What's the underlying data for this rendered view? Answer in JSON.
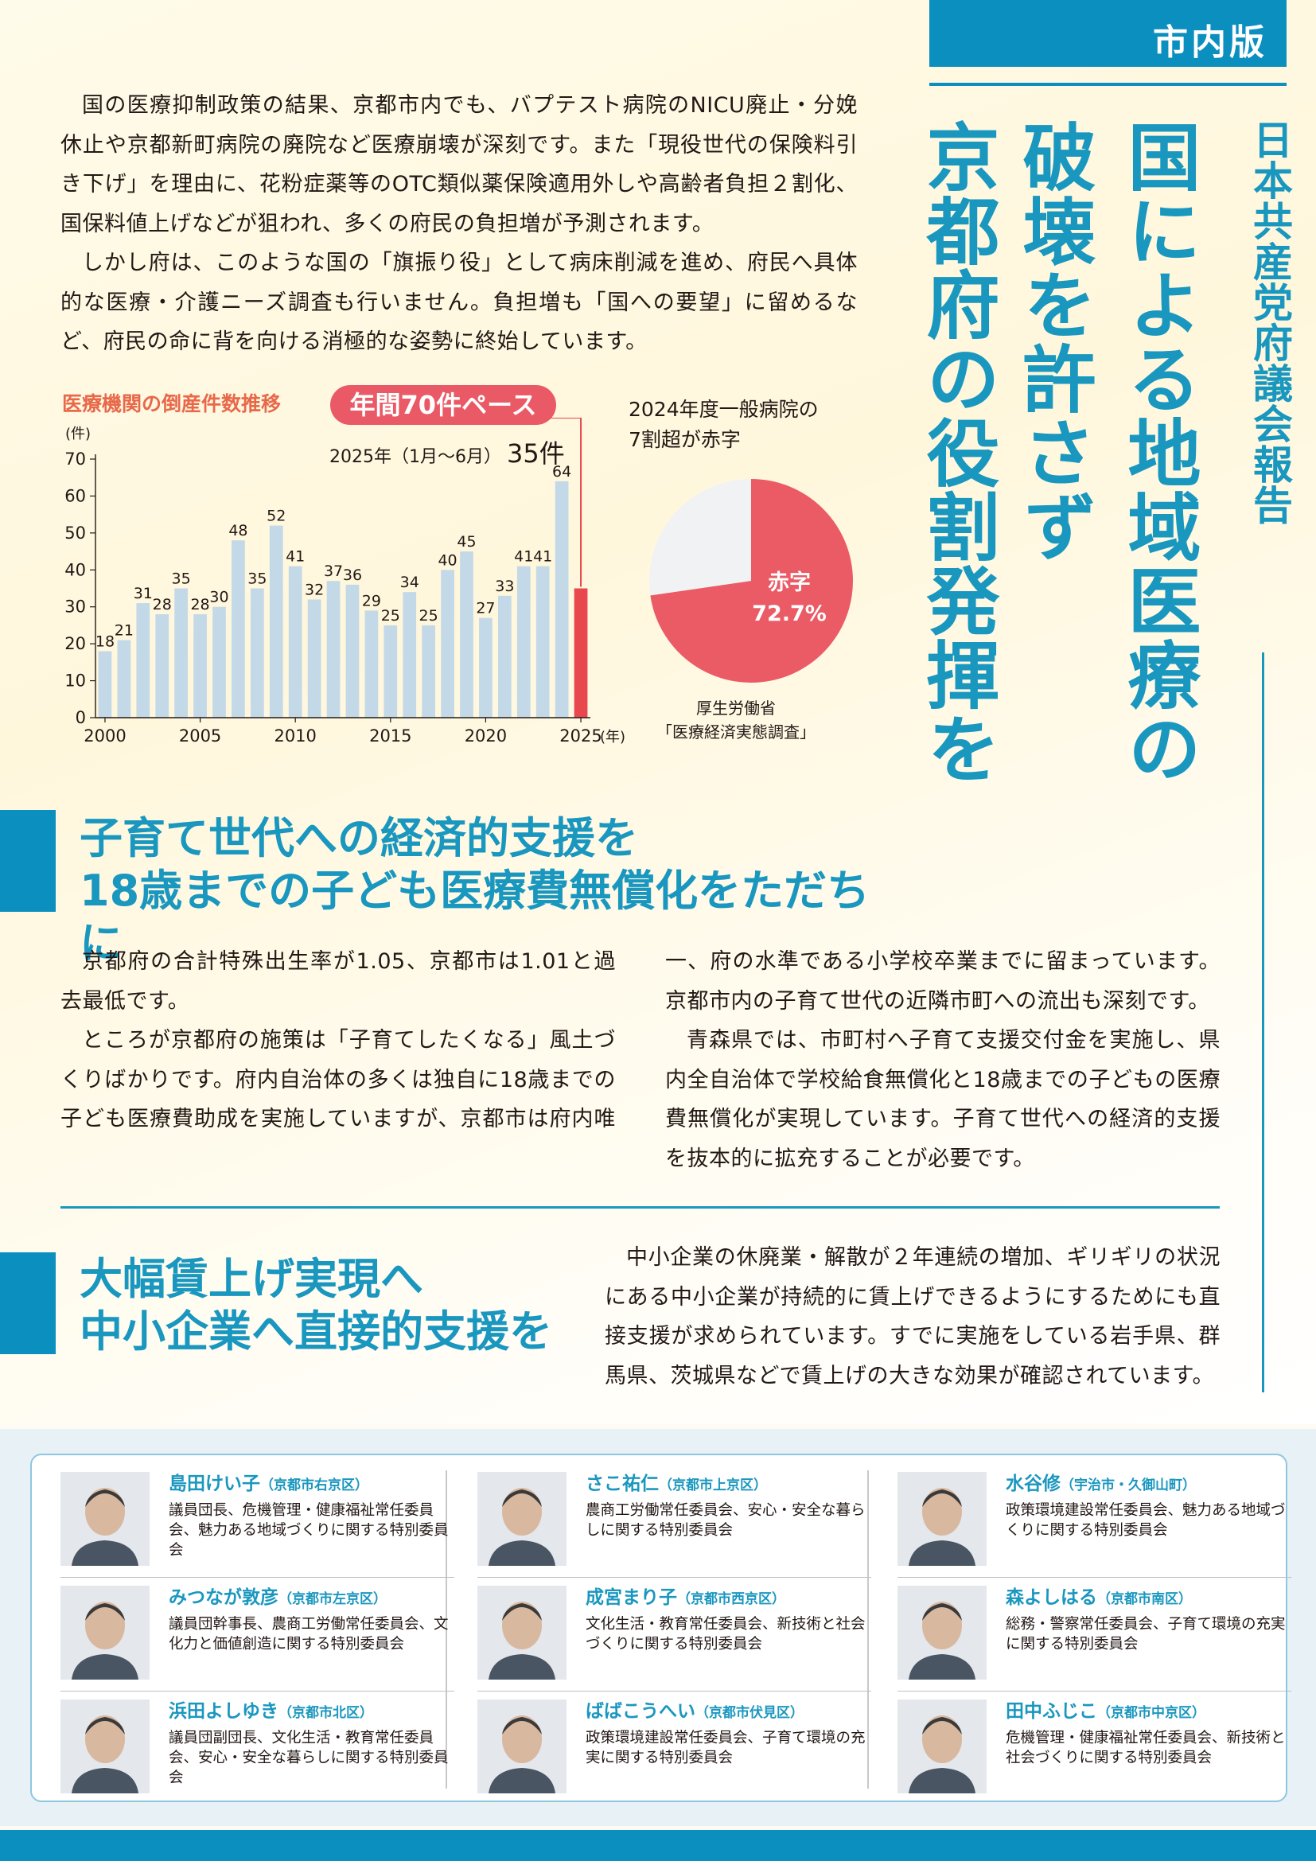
{
  "tag": "市内版",
  "title": {
    "sub": "日本共産党府議会報告",
    "main_lines": [
      "国による地域医療の",
      "破壊を許さず",
      "京都府の役割発揮を"
    ]
  },
  "intro": {
    "p1": "国の医療抑制政策の結果、京都市内でも、バプテスト病院のNICU廃止・分娩休止や京都新町病院の廃院など医療崩壊が深刻です。また「現役世代の保険料引き下げ」を理由に、花粉症薬等のOTC類似薬保険適用外しや高齢者負担２割化、国保料値上げなどが狙われ、多くの府民の負担増が予測されます。",
    "p2": "しかし府は、このような国の「旗振り役」として病床削減を進め、府民へ具体的な医療・介護ニーズ調査も行いません。負担増も「国への要望」に留めるなど、府民の命に背を向ける消極的な姿勢に終始しています。"
  },
  "chart_data": [
    {
      "type": "bar",
      "title": "医療機関の倒産件数推移",
      "ylabel": "(件)",
      "xlabel": "(年)",
      "ylim": [
        0,
        70
      ],
      "yticks": [
        0,
        10,
        20,
        30,
        40,
        50,
        60,
        70
      ],
      "xticks": [
        2000,
        2005,
        2010,
        2015,
        2020,
        2025
      ],
      "x": [
        2000,
        2001,
        2002,
        2003,
        2004,
        2005,
        2006,
        2007,
        2008,
        2009,
        2010,
        2011,
        2012,
        2013,
        2014,
        2015,
        2016,
        2017,
        2018,
        2019,
        2020,
        2021,
        2022,
        2023,
        2024,
        2025
      ],
      "values": [
        18,
        21,
        31,
        28,
        35,
        28,
        30,
        48,
        35,
        52,
        41,
        32,
        37,
        36,
        29,
        25,
        34,
        25,
        40,
        45,
        27,
        33,
        41,
        41,
        64,
        35
      ],
      "labels": [
        "18",
        "21",
        "31",
        "28",
        "35",
        "28",
        "30",
        "48",
        "35",
        "52",
        "41",
        "32",
        "37",
        "36",
        "29",
        "25",
        "34",
        "25",
        "40",
        "45",
        "27",
        "33",
        "41",
        "41",
        "64",
        ""
      ],
      "highlight_index": 25,
      "bar_color": "#c4d9e8",
      "highlight_color": "#e8474d",
      "annotation": "年間70件ペース",
      "note_prefix": "2025年（1月〜6月）",
      "note_value": "35件"
    },
    {
      "type": "pie",
      "title_lines": [
        "2024年度一般病院の",
        "7割超が赤字"
      ],
      "slices": [
        {
          "label": "赤字",
          "value": 72.7,
          "display": "72.7%",
          "color": "#ea5b66"
        },
        {
          "label": "",
          "value": 27.3,
          "color": "#f1f2f4"
        }
      ],
      "source_lines": [
        "厚生労働省",
        "「医療経済実態調査」"
      ]
    }
  ],
  "section1": {
    "head_lines": [
      "子育て世代への経済的支援を",
      "18歳までの子ども医療費無償化をただちに"
    ],
    "p1": "京都府の合計特殊出生率が1.05、京都市は1.01と過去最低です。",
    "p2": "ところが京都府の施策は「子育てしたくなる」風土づくりばかりです。府内自治体の多くは独自に18歳までの子ども医療費助成を実施していますが、京都市は府内唯一、府の水準である小学校卒業までに留まっています。京都市内の子育て世代の近隣市町への流出も深刻です。",
    "p3": "青森県では、市町村へ子育て支援交付金を実施し、県内全自治体で学校給食無償化と18歳までの子どもの医療費無償化が実現しています。子育て世代への経済的支援を抜本的に拡充することが必要です。"
  },
  "section2": {
    "head_lines": [
      "大幅賃上げ実現へ",
      "中小企業へ直接的支援を"
    ],
    "p1": "中小企業の休廃業・解散が２年連続の増加、ギリギリの状況にある中小企業が持続的に賃上げできるようにするためにも直接支援が求められています。すでに実施をしている岩手県、群馬県、茨城県などで賃上げの大きな効果が確認されています。"
  },
  "members": [
    {
      "name": "島田けい子",
      "district": "（京都市右京区）",
      "roles": "議員団長、危機管理・健康福祉常任委員会、魅力ある地域づくりに関する特別委員会"
    },
    {
      "name": "みつなが敦彦",
      "district": "（京都市左京区）",
      "roles": "議員団幹事長、農商工労働常任委員会、文化力と価値創造に関する特別委員会"
    },
    {
      "name": "浜田よしゆき",
      "district": "（京都市北区）",
      "roles": "議員団副団長、文化生活・教育常任委員会、安心・安全な暮らしに関する特別委員会"
    },
    {
      "name": "さこ祐仁",
      "district": "（京都市上京区）",
      "roles": "農商工労働常任委員会、安心・安全な暮らしに関する特別委員会"
    },
    {
      "name": "成宮まり子",
      "district": "（京都市西京区）",
      "roles": "文化生活・教育常任委員会、新技術と社会づくりに関する特別委員会"
    },
    {
      "name": "ばばこうへい",
      "district": "（京都市伏見区）",
      "roles": "政策環境建設常任委員会、子育て環境の充実に関する特別委員会"
    },
    {
      "name": "水谷修",
      "district": "（宇治市・久御山町）",
      "roles": "政策環境建設常任委員会、魅力ある地域づくりに関する特別委員会"
    },
    {
      "name": "森よしはる",
      "district": "（京都市南区）",
      "roles": "総務・警察常任委員会、子育て環境の充実に関する特別委員会"
    },
    {
      "name": "田中ふじこ",
      "district": "（京都市中京区）",
      "roles": "危機管理・健康福祉常任委員会、新技術と社会づくりに関する特別委員会"
    }
  ]
}
